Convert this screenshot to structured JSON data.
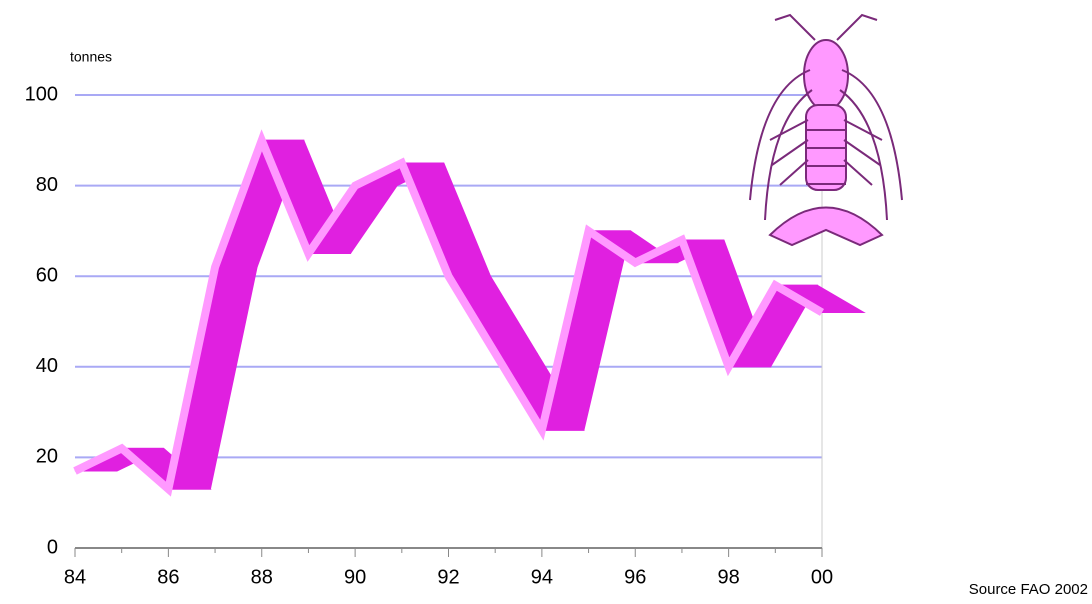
{
  "chart_data": {
    "type": "line",
    "y_label": "tonnes",
    "source": "Source FAO 2002",
    "categories": [
      "84",
      null,
      "86",
      null,
      "88",
      null,
      "90",
      null,
      "92",
      null,
      "94",
      null,
      "96",
      null,
      "98",
      null,
      "00"
    ],
    "series": [
      {
        "color": "#ff99ff",
        "values": [
          17,
          22,
          13,
          62,
          90,
          65,
          80,
          85,
          60,
          43,
          26,
          70,
          63,
          68,
          40,
          58,
          52
        ]
      }
    ],
    "ribbon_color": "#e020e0",
    "ylim": [
      0,
      100
    ],
    "yticks": [
      0,
      20,
      40,
      60,
      80,
      100
    ],
    "grid": true,
    "grid_color": "#a9a9f5"
  }
}
